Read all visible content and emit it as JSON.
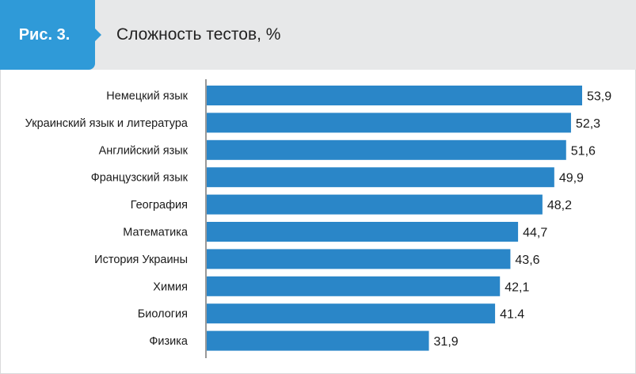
{
  "header": {
    "figure_label": "Рис. 3.",
    "title": "Сложность тестов, %"
  },
  "colors": {
    "bar": "#2a86c8",
    "header_bg": "#e7e8e9",
    "label_bg": "#2f9ad8"
  },
  "chart_data": {
    "type": "bar",
    "orientation": "horizontal",
    "title": "Сложность тестов, %",
    "categories": [
      "Немецкий язык",
      "Украинский язык и литература",
      "Английский язык",
      "Французский язык",
      "География",
      "Математика",
      "История Украины",
      "Химия",
      "Биология",
      "Физика"
    ],
    "values": [
      53.9,
      52.3,
      51.6,
      49.9,
      48.2,
      44.7,
      43.6,
      42.1,
      41.4,
      31.9
    ],
    "value_labels": [
      "53,9",
      "52,3",
      "51,6",
      "49,9",
      "48,2",
      "44,7",
      "43,6",
      "42,1",
      "41.4",
      "31,9"
    ],
    "xlim": [
      0,
      55
    ],
    "grid": false,
    "legend": "none"
  }
}
